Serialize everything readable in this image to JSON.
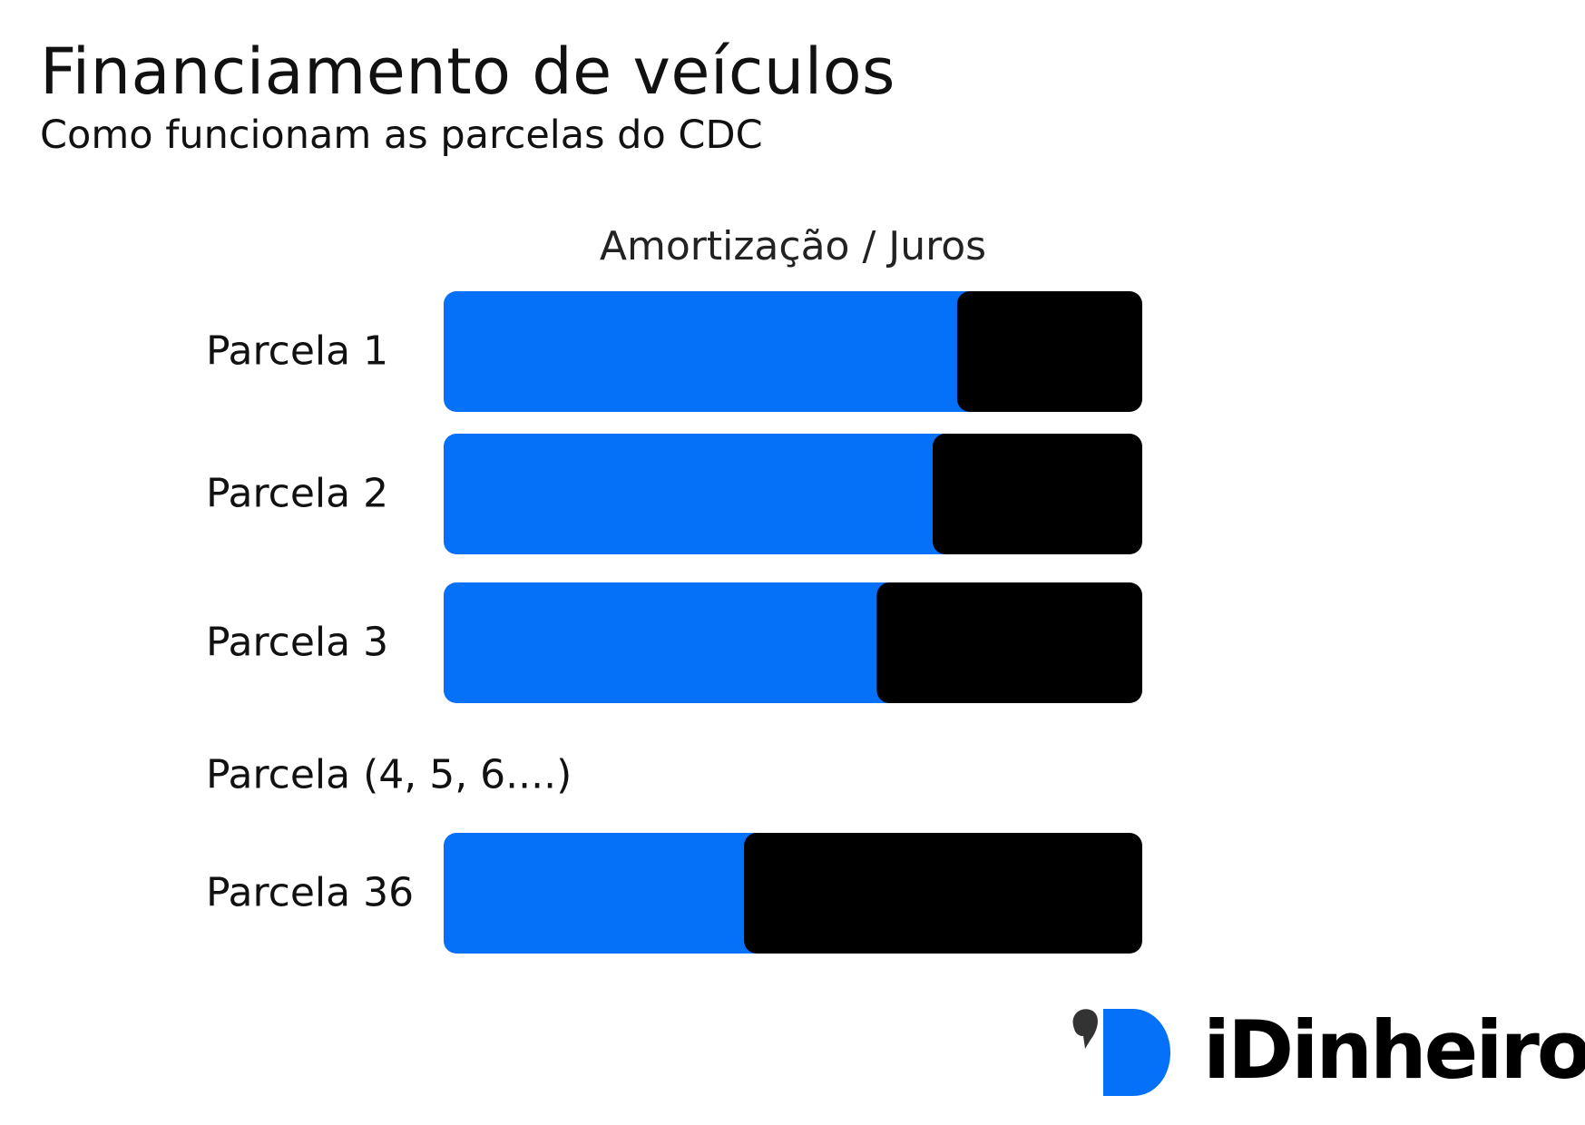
{
  "title": "Financiamento de veículos",
  "subtitle": "Como funcionam as parcelas do CDC",
  "logo": {
    "text": "iDinheiro",
    "brand_color": "#0570f8"
  },
  "chart_data": {
    "type": "bar",
    "orientation": "horizontal",
    "stacked": true,
    "normalized": true,
    "legend_text": "Amortização / Juros",
    "categories": [
      "Parcela 1",
      "Parcela 2",
      "Parcela 3",
      "Parcela 36"
    ],
    "gap_label": "Parcela (4, 5, 6....)",
    "series": [
      {
        "name": "Amortização",
        "color": "#0570f8",
        "values": [
          73.5,
          70,
          62,
          43
        ]
      },
      {
        "name": "Juros",
        "color": "#000000",
        "values": [
          26.5,
          30,
          38,
          57
        ]
      }
    ],
    "xlim": [
      0,
      100
    ],
    "grid": false,
    "axes_visible": false
  }
}
